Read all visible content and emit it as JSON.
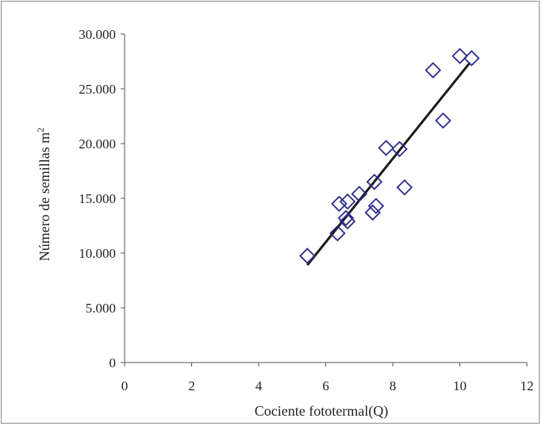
{
  "chart_data": {
    "type": "scatter",
    "xlabel": "Cociente fototermal(Q)",
    "ylabel": "Número de semillas m",
    "ylabel_superscript": "2",
    "xlim": [
      0,
      12
    ],
    "ylim": [
      0,
      30000
    ],
    "x_ticks": [
      0,
      2,
      4,
      6,
      8,
      10,
      12
    ],
    "x_tick_labels": [
      "0",
      "2",
      "4",
      "6",
      "8",
      "10",
      "12"
    ],
    "y_ticks": [
      0,
      5000,
      10000,
      15000,
      20000,
      25000,
      30000
    ],
    "y_tick_labels": [
      "0",
      "5.000",
      "10.000",
      "15.000",
      "20.000",
      "25.000",
      "30.000"
    ],
    "grid": false,
    "legend": false,
    "marker_color": "#2b2b8c",
    "line_color": "#1a1a1a",
    "series": [
      {
        "marker": "diamond",
        "points": [
          {
            "x": 5.45,
            "y": 9750
          },
          {
            "x": 6.35,
            "y": 11800
          },
          {
            "x": 6.4,
            "y": 14500
          },
          {
            "x": 6.6,
            "y": 13200
          },
          {
            "x": 6.65,
            "y": 12900
          },
          {
            "x": 6.65,
            "y": 14700
          },
          {
            "x": 7.0,
            "y": 15400
          },
          {
            "x": 7.4,
            "y": 13700
          },
          {
            "x": 7.45,
            "y": 16500
          },
          {
            "x": 7.5,
            "y": 14300
          },
          {
            "x": 7.8,
            "y": 19600
          },
          {
            "x": 8.2,
            "y": 19500
          },
          {
            "x": 8.35,
            "y": 16000
          },
          {
            "x": 9.2,
            "y": 26700
          },
          {
            "x": 9.5,
            "y": 22100
          },
          {
            "x": 10.0,
            "y": 28000
          },
          {
            "x": 10.35,
            "y": 27800
          }
        ]
      }
    ],
    "trendline": {
      "type": "linear",
      "x": [
        5.45,
        10.3
      ],
      "y": [
        8900,
        27400
      ]
    }
  }
}
